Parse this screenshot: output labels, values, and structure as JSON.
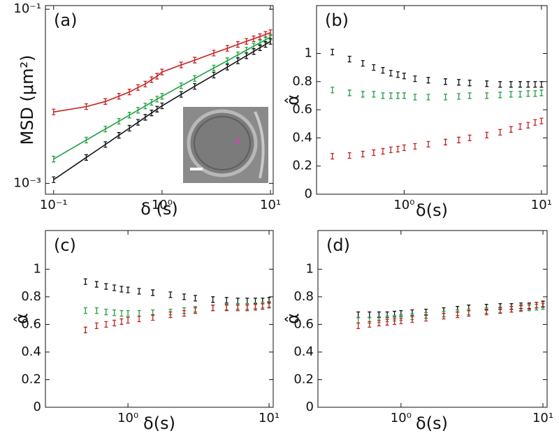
{
  "chart_data": [
    {
      "type": "line",
      "panel_label": "(a)",
      "xlabel": "δ (s)",
      "ylabel": "MSD (μm²)",
      "xscale": "log",
      "yscale": "log",
      "xlim": [
        0.084,
        10.6
      ],
      "ylim": [
        0.00075,
        0.11
      ],
      "xticks": [
        {
          "value": 0.1,
          "label": "10⁻¹"
        },
        {
          "value": 1,
          "label": "10⁰"
        },
        {
          "value": 10,
          "label": "10¹"
        }
      ],
      "yticks": [
        {
          "value": 0.001,
          "label": "10⁻³"
        },
        {
          "value": 0.1,
          "label": "10⁻¹"
        }
      ],
      "x": [
        0.1,
        0.2,
        0.3,
        0.4,
        0.5,
        0.6,
        0.7,
        0.8,
        0.9,
        1,
        1.5,
        2,
        3,
        4,
        5,
        6,
        7,
        8,
        9,
        10
      ],
      "series": [
        {
          "color": "#c62020",
          "values": [
            0.0066,
            0.0076,
            0.0087,
            0.01,
            0.0112,
            0.0126,
            0.0138,
            0.0155,
            0.017,
            0.019,
            0.0229,
            0.026,
            0.0313,
            0.0355,
            0.0394,
            0.0427,
            0.0457,
            0.0484,
            0.0513,
            0.0537
          ]
        },
        {
          "color": "#20a040",
          "values": [
            0.0019,
            0.00314,
            0.0042,
            0.00516,
            0.00607,
            0.00692,
            0.00773,
            0.00851,
            0.00927,
            0.01,
            0.0132,
            0.016,
            0.0211,
            0.0256,
            0.0299,
            0.0338,
            0.0376,
            0.0411,
            0.0446,
            0.0479
          ]
        },
        {
          "color": "#111111",
          "values": [
            0.0011,
            0.00198,
            0.00279,
            0.00356,
            0.0043,
            0.00502,
            0.00573,
            0.00643,
            0.0071,
            0.00776,
            0.0105,
            0.013,
            0.0175,
            0.0216,
            0.0255,
            0.0292,
            0.0327,
            0.0361,
            0.0394,
            0.0427
          ]
        }
      ]
    },
    {
      "type": "scatter",
      "panel_label": "(b)",
      "xlabel": "δ(s)",
      "ylabel": "α̂",
      "xscale": "log",
      "yscale": "linear",
      "xlim": [
        0.23,
        11
      ],
      "ylim": [
        0,
        1.34
      ],
      "xticks": [
        {
          "value": 1,
          "label": "10⁰"
        },
        {
          "value": 10,
          "label": "10¹"
        }
      ],
      "yticks": [
        0,
        0.2,
        0.4,
        0.6,
        0.8,
        1
      ],
      "x": [
        0.3,
        0.4,
        0.5,
        0.6,
        0.7,
        0.8,
        0.9,
        1,
        1.2,
        1.5,
        2,
        2.5,
        3,
        4,
        5,
        6,
        7,
        8,
        9,
        10
      ],
      "series": [
        {
          "color": "#111111",
          "values": [
            1.01,
            0.96,
            0.93,
            0.9,
            0.88,
            0.86,
            0.85,
            0.84,
            0.82,
            0.81,
            0.8,
            0.795,
            0.79,
            0.785,
            0.78,
            0.78,
            0.78,
            0.78,
            0.78,
            0.78
          ]
        },
        {
          "color": "#20a040",
          "values": [
            0.74,
            0.72,
            0.71,
            0.71,
            0.7,
            0.7,
            0.7,
            0.7,
            0.69,
            0.69,
            0.69,
            0.695,
            0.7,
            0.7,
            0.705,
            0.71,
            0.71,
            0.715,
            0.715,
            0.72
          ]
        },
        {
          "color": "#c62020",
          "values": [
            0.27,
            0.275,
            0.285,
            0.295,
            0.305,
            0.315,
            0.32,
            0.33,
            0.34,
            0.355,
            0.37,
            0.385,
            0.4,
            0.42,
            0.44,
            0.46,
            0.48,
            0.49,
            0.51,
            0.52
          ]
        }
      ]
    },
    {
      "type": "scatter",
      "panel_label": "(c)",
      "xlabel": "δ(s)",
      "ylabel": "α̂",
      "xscale": "log",
      "yscale": "linear",
      "xlim": [
        0.26,
        10.7
      ],
      "ylim": [
        0,
        1.28
      ],
      "xticks": [
        {
          "value": 1,
          "label": "10⁰"
        },
        {
          "value": 10,
          "label": "10¹"
        }
      ],
      "yticks": [
        0,
        0.2,
        0.4,
        0.6,
        0.8,
        1
      ],
      "x": [
        0.5,
        0.6,
        0.7,
        0.8,
        0.9,
        1,
        1.2,
        1.5,
        2,
        2.5,
        3,
        4,
        5,
        6,
        7,
        8,
        9,
        10
      ],
      "series": [
        {
          "color": "#111111",
          "values": [
            0.91,
            0.89,
            0.875,
            0.865,
            0.855,
            0.85,
            0.84,
            0.83,
            0.815,
            0.8,
            0.79,
            0.78,
            0.775,
            0.77,
            0.77,
            0.77,
            0.77,
            0.775
          ]
        },
        {
          "color": "#20a040",
          "values": [
            0.7,
            0.7,
            0.69,
            0.685,
            0.68,
            0.68,
            0.68,
            0.685,
            0.69,
            0.7,
            0.71,
            0.72,
            0.725,
            0.73,
            0.73,
            0.735,
            0.74,
            0.745
          ]
        },
        {
          "color": "#c62020",
          "values": [
            0.56,
            0.59,
            0.6,
            0.61,
            0.62,
            0.63,
            0.64,
            0.65,
            0.67,
            0.68,
            0.7,
            0.72,
            0.72,
            0.72,
            0.72,
            0.725,
            0.73,
            0.74
          ]
        }
      ]
    },
    {
      "type": "scatter",
      "panel_label": "(d)",
      "xlabel": "δ(s)",
      "ylabel": "α̂",
      "xscale": "log",
      "yscale": "linear",
      "xlim": [
        0.26,
        10.7
      ],
      "ylim": [
        0,
        1.28
      ],
      "xticks": [
        {
          "value": 1,
          "label": "10⁰"
        },
        {
          "value": 10,
          "label": "10¹"
        }
      ],
      "yticks": [
        0,
        0.2,
        0.4,
        0.6,
        0.8,
        1
      ],
      "x": [
        0.5,
        0.6,
        0.7,
        0.8,
        0.9,
        1,
        1.2,
        1.5,
        2,
        2.5,
        3,
        4,
        5,
        6,
        7,
        8,
        9,
        10
      ],
      "series": [
        {
          "color": "#111111",
          "values": [
            0.67,
            0.67,
            0.67,
            0.67,
            0.675,
            0.68,
            0.685,
            0.69,
            0.7,
            0.71,
            0.72,
            0.725,
            0.73,
            0.73,
            0.735,
            0.735,
            0.74,
            0.745
          ]
        },
        {
          "color": "#20a040",
          "values": [
            0.63,
            0.63,
            0.635,
            0.64,
            0.645,
            0.65,
            0.655,
            0.665,
            0.675,
            0.685,
            0.69,
            0.7,
            0.705,
            0.71,
            0.715,
            0.72,
            0.725,
            0.73
          ]
        },
        {
          "color": "#c62020",
          "values": [
            0.59,
            0.6,
            0.61,
            0.615,
            0.62,
            0.625,
            0.635,
            0.645,
            0.66,
            0.67,
            0.68,
            0.69,
            0.7,
            0.71,
            0.72,
            0.73,
            0.74,
            0.75
          ]
        }
      ]
    }
  ]
}
